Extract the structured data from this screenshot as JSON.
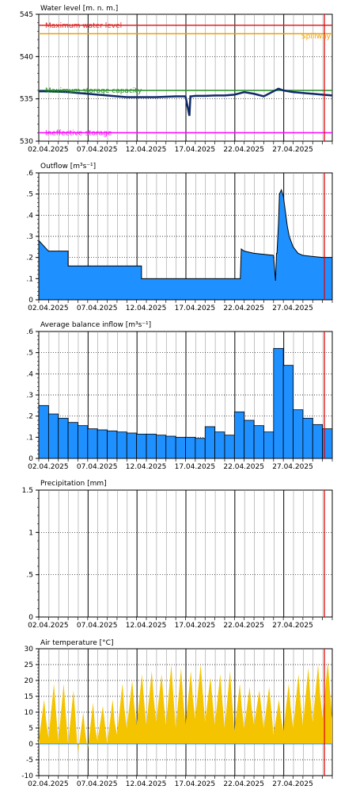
{
  "dates": [
    "02.04.2025",
    "07.04.2025",
    "12.04.2025",
    "17.04.2025",
    "22.04.2025",
    "27.04.2025"
  ],
  "chart_data": [
    {
      "type": "line",
      "title": "Water level [m. n. m.]",
      "ylim": [
        530,
        545
      ],
      "yticks": [
        530,
        535,
        540,
        545
      ],
      "xlim": [
        0,
        30
      ],
      "reference_lines": [
        {
          "label": "Maximum water level",
          "value": 543.7,
          "color": "#e02020"
        },
        {
          "label": "Spillway",
          "value": 542.7,
          "color": "#f0a000"
        },
        {
          "label": "Maximum storage capacity",
          "value": 536.0,
          "color": "#228b22"
        },
        {
          "label": "Ineffective storage",
          "value": 531.0,
          "color": "#ff00ff"
        }
      ],
      "series": [
        {
          "color": "#102a6a",
          "x": [
            0,
            1,
            2,
            3,
            4,
            5,
            6,
            7,
            8,
            9,
            10,
            11,
            12,
            13,
            14,
            15,
            15.4,
            15.5,
            15.6,
            16,
            17,
            18,
            19,
            20,
            21,
            22,
            23,
            24,
            24.5,
            25,
            26,
            27,
            28,
            29,
            30
          ],
          "y": [
            535.9,
            535.9,
            535.85,
            535.8,
            535.7,
            535.6,
            535.5,
            535.4,
            535.3,
            535.2,
            535.2,
            535.2,
            535.2,
            535.25,
            535.3,
            535.3,
            533.0,
            535.3,
            535.3,
            535.35,
            535.35,
            535.4,
            535.4,
            535.5,
            535.8,
            535.6,
            535.3,
            535.9,
            536.2,
            536.0,
            535.8,
            535.7,
            535.6,
            535.5,
            535.4
          ]
        }
      ]
    },
    {
      "type": "area",
      "title": "Outflow [m³s⁻¹]",
      "ylim": [
        0,
        0.6
      ],
      "yticks": [
        0,
        0.1,
        0.2,
        0.3,
        0.4,
        0.5,
        0.6
      ],
      "xlim": [
        0,
        30
      ],
      "series": [
        {
          "color": "#1e90ff",
          "x": [
            0,
            1,
            1.01,
            3,
            3,
            6,
            6,
            10.5,
            10.5,
            15,
            15,
            20.6,
            20.7,
            21,
            22,
            22,
            24,
            24.2,
            24.3,
            24.35,
            24.5,
            24.6,
            24.8,
            25,
            25.2,
            25.4,
            25.6,
            26,
            26.5,
            27,
            28,
            29,
            30
          ],
          "y": [
            0.28,
            0.23,
            0.23,
            0.23,
            0.16,
            0.16,
            0.16,
            0.16,
            0.1,
            0.1,
            0.1,
            0.1,
            0.24,
            0.23,
            0.22,
            0.22,
            0.21,
            0.09,
            0.22,
            0.22,
            0.36,
            0.5,
            0.52,
            0.49,
            0.42,
            0.35,
            0.3,
            0.25,
            0.22,
            0.21,
            0.205,
            0.2,
            0.2
          ]
        }
      ]
    },
    {
      "type": "bar",
      "title": "Average balance inflow  [m³s⁻¹]",
      "ylim": [
        0,
        0.6
      ],
      "yticks": [
        0,
        0.1,
        0.2,
        0.3,
        0.4,
        0.5,
        0.6
      ],
      "xlim": [
        0,
        30
      ],
      "series": [
        {
          "color": "#1e90ff",
          "values": [
            0.25,
            0.21,
            0.19,
            0.17,
            0.155,
            0.14,
            0.135,
            0.13,
            0.125,
            0.12,
            0.115,
            0.115,
            0.11,
            0.105,
            0.1,
            0.1,
            0.095,
            0.15,
            0.125,
            0.11,
            0.22,
            0.18,
            0.155,
            0.125,
            0.52,
            0.44,
            0.23,
            0.19,
            0.16,
            0.14
          ]
        }
      ]
    },
    {
      "type": "bar",
      "title": "Precipitation [mm]",
      "ylim": [
        0,
        1.5
      ],
      "yticks": [
        0,
        0.5,
        1,
        1.5
      ],
      "xlim": [
        0,
        30
      ],
      "series": [
        {
          "color": "#1e90ff",
          "values": [
            0,
            0,
            0,
            0,
            0,
            0,
            0,
            0,
            0,
            0,
            0,
            0,
            0,
            0,
            0,
            0,
            0,
            0,
            0,
            0,
            0,
            0,
            0,
            0,
            0,
            0,
            0,
            0,
            0,
            0
          ]
        }
      ]
    },
    {
      "type": "area",
      "title": "Air temperature [°C]",
      "ylim": [
        -10,
        30
      ],
      "yticks": [
        -10,
        -5,
        0,
        5,
        10,
        15,
        20,
        25,
        30
      ],
      "xlim": [
        0,
        30
      ],
      "series": [
        {
          "color": "#f5c400",
          "daily_min": [
            1,
            2,
            1,
            0,
            -3,
            -2,
            1,
            0,
            3,
            5,
            6,
            6,
            7,
            6,
            5,
            6,
            8,
            7,
            6,
            5,
            4,
            5,
            6,
            5,
            3,
            4,
            5,
            6,
            7,
            8
          ],
          "daily_max": [
            14,
            19,
            19,
            17,
            10,
            13,
            12,
            14,
            19,
            20,
            22,
            23,
            22,
            25,
            24,
            23,
            25,
            21,
            22,
            23,
            19,
            18,
            17,
            18,
            14,
            19,
            22,
            24,
            25,
            26
          ]
        }
      ]
    }
  ]
}
